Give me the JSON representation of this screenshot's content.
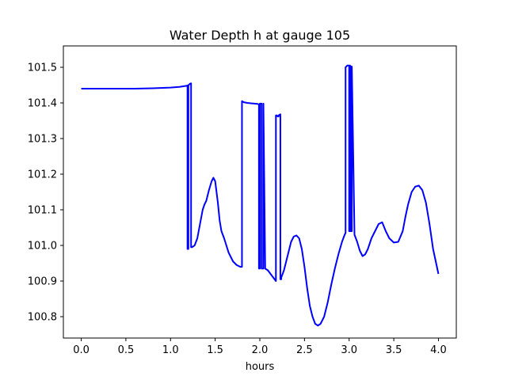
{
  "chart_data": {
    "type": "line",
    "title": "Water Depth h at gauge 105",
    "xlabel": "hours",
    "ylabel": "",
    "xlim": [
      -0.2,
      4.2
    ],
    "ylim": [
      100.74,
      101.56
    ],
    "xticks": [
      0.0,
      0.5,
      1.0,
      1.5,
      2.0,
      2.5,
      3.0,
      3.5,
      4.0
    ],
    "xtick_labels": [
      "0.0",
      "0.5",
      "1.0",
      "1.5",
      "2.0",
      "2.5",
      "3.0",
      "3.5",
      "4.0"
    ],
    "yticks": [
      100.8,
      100.9,
      101.0,
      101.1,
      101.2,
      101.3,
      101.4,
      101.5
    ],
    "ytick_labels": [
      "100.8",
      "100.9",
      "101.0",
      "101.1",
      "101.2",
      "101.3",
      "101.4",
      "101.5"
    ],
    "grid": false,
    "series": [
      {
        "color": "#0000ff",
        "x": [
          0.0,
          0.2,
          0.4,
          0.6,
          0.8,
          1.0,
          1.1,
          1.15,
          1.18,
          1.19,
          1.19,
          1.2,
          1.2,
          1.21,
          1.22,
          1.23,
          1.23,
          1.24,
          1.24,
          1.27,
          1.3,
          1.33,
          1.36,
          1.38,
          1.4,
          1.43,
          1.46,
          1.48,
          1.5,
          1.53,
          1.55,
          1.57,
          1.6,
          1.65,
          1.7,
          1.74,
          1.78,
          1.8,
          1.8,
          1.82,
          1.86,
          1.9,
          1.94,
          1.98,
          1.99,
          1.99,
          2.0,
          2.0,
          2.01,
          2.02,
          2.02,
          2.03,
          2.04,
          2.04,
          2.06,
          2.09,
          2.12,
          2.15,
          2.18,
          2.18,
          2.19,
          2.2,
          2.21,
          2.21,
          2.23,
          2.23,
          2.24,
          2.24,
          2.27,
          2.31,
          2.35,
          2.38,
          2.41,
          2.44,
          2.47,
          2.5,
          2.53,
          2.56,
          2.59,
          2.62,
          2.65,
          2.68,
          2.72,
          2.76,
          2.8,
          2.84,
          2.88,
          2.92,
          2.95,
          2.96,
          2.96,
          2.98,
          3.0,
          3.0,
          3.01,
          3.01,
          3.02,
          3.02,
          3.03,
          3.03,
          3.06,
          3.09,
          3.12,
          3.15,
          3.18,
          3.21,
          3.25,
          3.29,
          3.33,
          3.37,
          3.41,
          3.45,
          3.5,
          3.55,
          3.6,
          3.63,
          3.66,
          3.7,
          3.74,
          3.78,
          3.82,
          3.86,
          3.9,
          3.94,
          3.97,
          4.0
        ],
        "y": [
          101.44,
          101.44,
          101.44,
          101.44,
          101.441,
          101.443,
          101.445,
          101.447,
          101.448,
          101.449,
          100.99,
          100.99,
          101.45,
          101.452,
          101.454,
          101.455,
          100.995,
          100.995,
          100.995,
          101.0,
          101.02,
          101.06,
          101.1,
          101.115,
          101.125,
          101.155,
          101.18,
          101.19,
          101.18,
          101.12,
          101.07,
          101.04,
          101.02,
          100.98,
          100.955,
          100.945,
          100.94,
          100.94,
          101.405,
          101.402,
          101.4,
          101.399,
          101.398,
          101.397,
          101.395,
          100.935,
          100.935,
          101.398,
          101.398,
          101.398,
          100.935,
          100.935,
          100.935,
          101.398,
          100.935,
          100.93,
          100.92,
          100.91,
          100.9,
          101.365,
          101.365,
          101.362,
          101.362,
          101.365,
          101.368,
          100.905,
          100.905,
          100.91,
          100.93,
          100.97,
          101.01,
          101.025,
          101.028,
          101.02,
          100.99,
          100.94,
          100.88,
          100.83,
          100.8,
          100.78,
          100.775,
          100.78,
          100.8,
          100.84,
          100.89,
          100.935,
          100.975,
          101.01,
          101.03,
          101.035,
          101.5,
          101.505,
          101.505,
          101.04,
          101.04,
          101.505,
          101.502,
          101.04,
          101.04,
          101.502,
          101.03,
          101.01,
          100.985,
          100.97,
          100.975,
          100.99,
          101.02,
          101.04,
          101.06,
          101.065,
          101.04,
          101.02,
          101.008,
          101.01,
          101.04,
          101.08,
          101.115,
          101.15,
          101.165,
          101.168,
          101.155,
          101.12,
          101.06,
          100.99,
          100.955,
          100.92
        ]
      }
    ]
  }
}
